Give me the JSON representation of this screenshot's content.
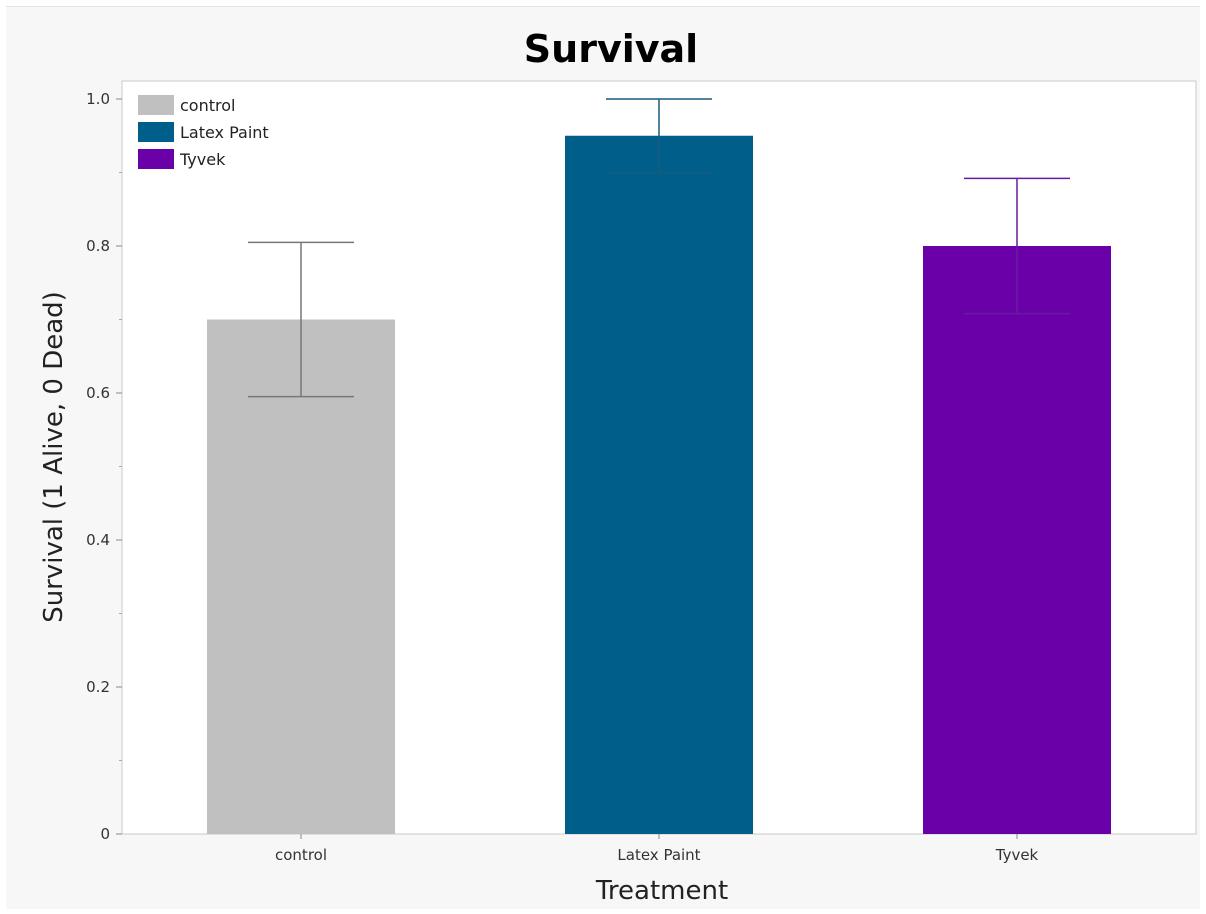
{
  "chart_data": {
    "type": "bar",
    "title": "Survival",
    "xlabel": "Treatment",
    "ylabel": "Survival (1 Alive, 0 Dead)",
    "ylim": [
      0,
      1.0
    ],
    "yticks": [
      "0",
      "0.2",
      "0.4",
      "0.6",
      "0.8",
      "1.0"
    ],
    "categories": [
      "control",
      "Latex Paint",
      "Tyvek"
    ],
    "values": [
      0.7,
      0.95,
      0.8
    ],
    "error_bars": [
      {
        "low": 0.595,
        "high": 0.805
      },
      {
        "low": 0.9,
        "high": 1.0
      },
      {
        "low": 0.708,
        "high": 0.892
      }
    ],
    "colors": [
      "#c0c0c0",
      "#005f8a",
      "#6a00a8"
    ],
    "errorbar_colors": [
      "#777777",
      "#1a5a7c",
      "#6a1aa0"
    ],
    "legend": {
      "position": "top-left",
      "entries": [
        "control",
        "Latex Paint",
        "Tyvek"
      ]
    },
    "grid": false
  }
}
